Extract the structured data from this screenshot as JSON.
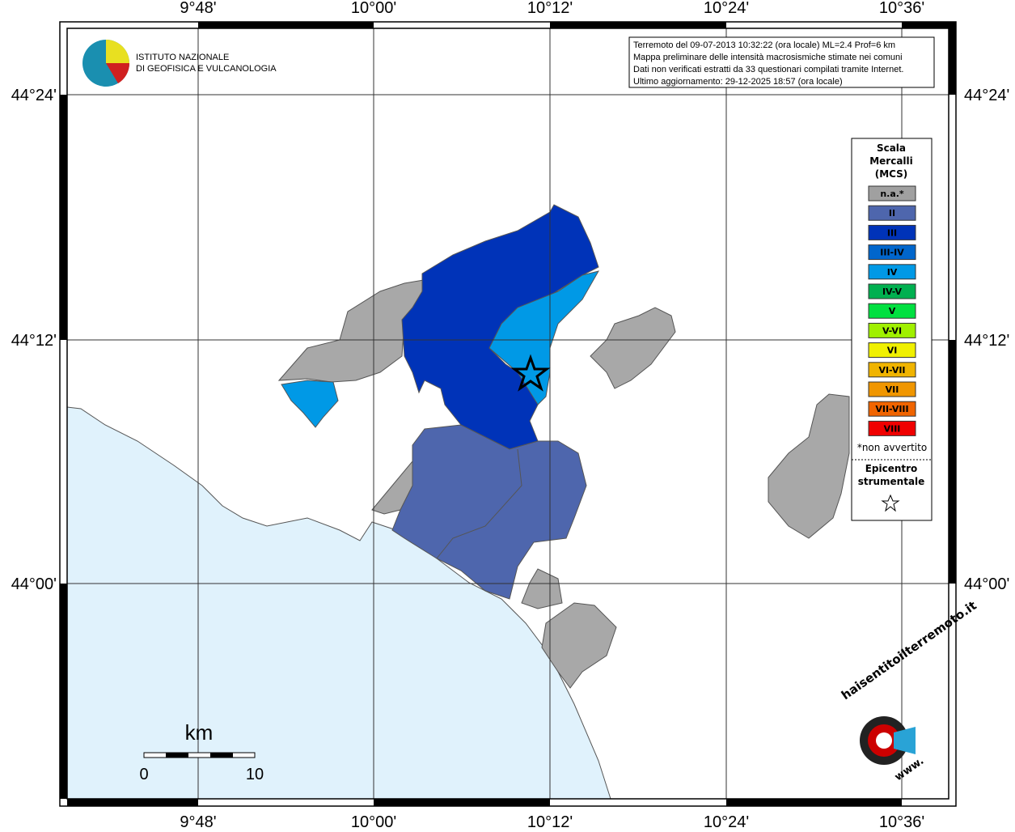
{
  "header": {
    "institute": [
      "ISTITUTO NAZIONALE",
      "DI GEOFISICA E VULCANOLOGIA"
    ],
    "info": [
      "Terremoto del 09-07-2013 10:32:22 (ora locale) ML=2.4 Prof=6 km",
      "Mappa preliminare delle intensità macrosismiche stimate nei comuni",
      "Dati non verificati estratti da 33 questionari compilati tramite Internet.",
      "Ultimo aggiornamento: 29-12-2025 18:57 (ora locale)"
    ]
  },
  "map": {
    "lon_labels": [
      "9°48'",
      "10°00'",
      "10°12'",
      "10°24'",
      "10°36'"
    ],
    "lat_labels": [
      "44°24'",
      "44°12'",
      "44°00'"
    ]
  },
  "legend": {
    "title": [
      "Scala",
      "Mercalli",
      "(MCS)"
    ],
    "items": [
      {
        "label": "n.a.*",
        "color": "#a0a0a0"
      },
      {
        "label": "II",
        "color": "#4e66ad"
      },
      {
        "label": "III",
        "color": "#0033b8"
      },
      {
        "label": "III-IV",
        "color": "#0066cc"
      },
      {
        "label": "IV",
        "color": "#0099e6"
      },
      {
        "label": "IV-V",
        "color": "#00b050"
      },
      {
        "label": "V",
        "color": "#00e040"
      },
      {
        "label": "V-VI",
        "color": "#a0f000"
      },
      {
        "label": "VI",
        "color": "#f0f000"
      },
      {
        "label": "VI-VII",
        "color": "#f0b400"
      },
      {
        "label": "VII",
        "color": "#f09600"
      },
      {
        "label": "VII-VIII",
        "color": "#f06400"
      },
      {
        "label": "VIII",
        "color": "#f00000"
      }
    ],
    "note": "*non avvertito",
    "epicenter": [
      "Epicentro",
      "strumentale"
    ]
  },
  "scale_bar": {
    "unit": "km",
    "labels": [
      "0",
      "10"
    ]
  },
  "brand": {
    "site": "haisentitoilterremoto.it",
    "www": "www."
  }
}
